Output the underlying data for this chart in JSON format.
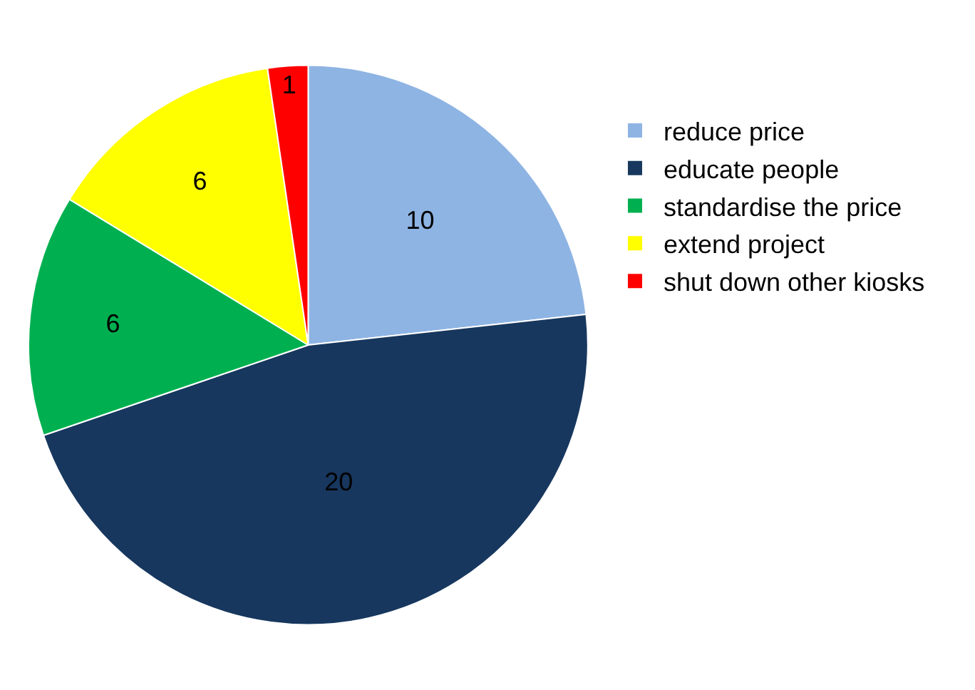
{
  "chart_data": {
    "type": "pie",
    "categories": [
      "reduce price",
      "educate people",
      "standardise the price",
      "extend project",
      "shut down other kiosks"
    ],
    "values": [
      10,
      20,
      6,
      6,
      1
    ],
    "colors": [
      "#8eb4e3",
      "#17375e",
      "#00b050",
      "#ffff00",
      "#ff0000"
    ],
    "data_labels": true,
    "legend": "right"
  }
}
